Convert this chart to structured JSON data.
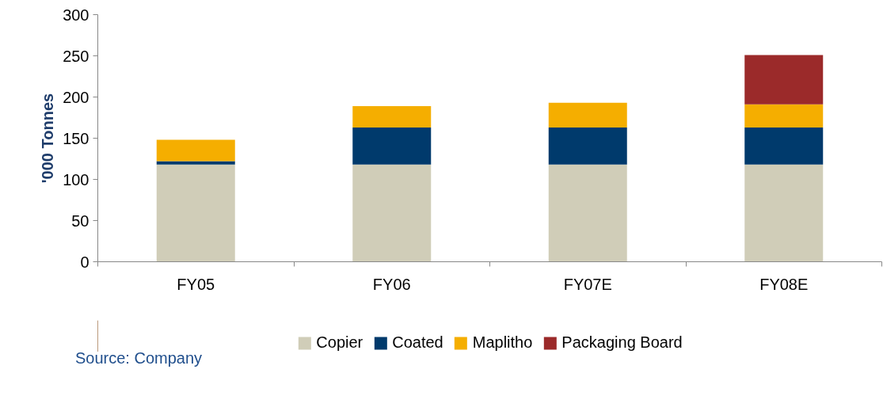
{
  "chart_data": {
    "type": "bar",
    "stacked": true,
    "ylabel": "'000 Tonnes",
    "categories": [
      "FY05",
      "FY06",
      "FY07E",
      "FY08E"
    ],
    "series": [
      {
        "name": "Copier",
        "color": "#d0cdb8",
        "values": [
          118,
          118,
          118,
          118
        ]
      },
      {
        "name": "Coated",
        "color": "#003a6c",
        "values": [
          4,
          45,
          45,
          45
        ]
      },
      {
        "name": "Maplitho",
        "color": "#f5ae00",
        "values": [
          26,
          26,
          30,
          28
        ]
      },
      {
        "name": "Packaging Board",
        "color": "#9b2a2a",
        "values": [
          null,
          null,
          null,
          60
        ]
      }
    ],
    "ylim": [
      0,
      300
    ],
    "yticks": [
      0,
      50,
      100,
      150,
      200,
      250,
      300
    ],
    "grid": false,
    "legend": "bottom",
    "annotations": [
      "Source: Company"
    ]
  }
}
